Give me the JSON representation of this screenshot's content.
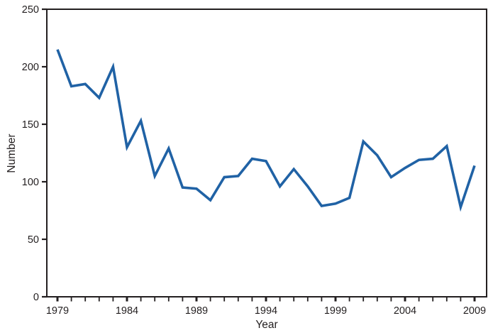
{
  "figure": {
    "background_color": "#ffffff",
    "axis_color": "#231f20",
    "text_color": "#231f20"
  },
  "chart_data": {
    "type": "line",
    "title": "",
    "xlabel": "Year",
    "ylabel": "Number",
    "x": [
      1979,
      1980,
      1981,
      1982,
      1983,
      1984,
      1985,
      1986,
      1987,
      1988,
      1989,
      1990,
      1991,
      1992,
      1993,
      1994,
      1995,
      1996,
      1997,
      1998,
      1999,
      2000,
      2001,
      2002,
      2003,
      2004,
      2005,
      2006,
      2007,
      2008,
      2009
    ],
    "values": [
      215,
      183,
      185,
      173,
      200,
      130,
      153,
      105,
      129,
      95,
      94,
      84,
      104,
      105,
      120,
      118,
      96,
      111,
      96,
      79,
      81,
      86,
      135,
      123,
      104,
      112,
      119,
      120,
      131,
      78,
      114
    ],
    "ylim": [
      0,
      250
    ],
    "yticks": [
      0,
      50,
      100,
      150,
      200,
      250
    ],
    "xticks_labeled": [
      1979,
      1984,
      1989,
      1994,
      1999,
      2004,
      2009
    ],
    "xticks_minor_every_year": true,
    "grid": false,
    "legend": null,
    "line_color": "#2062a5",
    "line_width": 3.6,
    "axis_color": "#231f20",
    "plot_border": "full-box"
  }
}
